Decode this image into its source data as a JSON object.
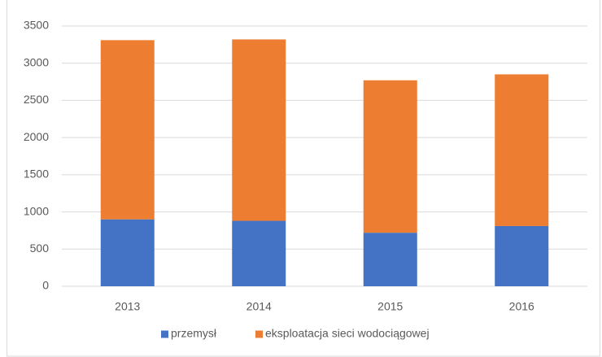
{
  "chart_data": {
    "type": "stacked_bar",
    "categories": [
      "2013",
      "2014",
      "2015",
      "2016"
    ],
    "series": [
      {
        "name": "przemysł",
        "color": "#4472c4",
        "values": [
          900,
          880,
          720,
          810
        ]
      },
      {
        "name": "eksploatacja sieci wodociągowej",
        "color": "#ed7d31",
        "values": [
          2410,
          2440,
          2050,
          2040
        ]
      }
    ],
    "ylim": [
      0,
      3500
    ],
    "yticks": [
      0,
      500,
      1000,
      1500,
      2000,
      2500,
      3000,
      3500
    ],
    "grid": true,
    "legend": "bottom"
  }
}
